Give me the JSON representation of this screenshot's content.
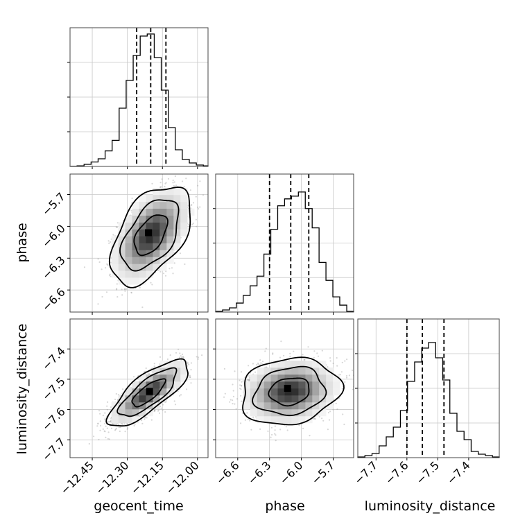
{
  "chart_data": {
    "type": "corner",
    "parameters": [
      "geocent_time",
      "phase",
      "luminosity_distance"
    ],
    "axis_labels": {
      "geocent_time": "geocent_time",
      "phase": "phase",
      "luminosity_distance": "luminosity_distance"
    },
    "ranges": {
      "geocent_time": [
        -12.545,
        -11.955
      ],
      "phase": [
        -6.808,
        -5.507
      ],
      "luminosity_distance": [
        -7.759,
        -7.301
      ]
    },
    "ticks": {
      "geocent_time": [
        -12.45,
        -12.3,
        -12.15,
        -12.0
      ],
      "phase": [
        -6.6,
        -6.3,
        -6.0,
        -5.7
      ],
      "luminosity_distance": [
        -7.7,
        -7.6,
        -7.5,
        -7.4
      ]
    },
    "tick_labels": {
      "geocent_time": [
        "−12.45",
        "−12.30",
        "−12.15",
        "−12.00"
      ],
      "phase": [
        "−6.6",
        "−6.3",
        "−6.0",
        "−5.7"
      ],
      "luminosity_distance": [
        "−7.7",
        "−7.6",
        "−7.5",
        "−7.4"
      ]
    },
    "quantiles": {
      "geocent_time": [
        -12.26,
        -12.2,
        -12.135
      ],
      "phase": [
        -6.3,
        -6.1,
        -5.93
      ],
      "luminosity_distance": [
        -7.6,
        -7.55,
        -7.48
      ]
    },
    "histograms": {
      "geocent_time": {
        "edges": [
          -12.545,
          -12.515,
          -12.485,
          -12.455,
          -12.425,
          -12.395,
          -12.365,
          -12.335,
          -12.305,
          -12.275,
          -12.245,
          -12.215,
          -12.185,
          -12.155,
          -12.125,
          -12.095,
          -12.065,
          -12.035,
          -12.005,
          -11.975,
          -11.955
        ],
        "counts": [
          0.1,
          0.4,
          1.5,
          3.2,
          5.5,
          11.2,
          18.8,
          42.0,
          62.0,
          80.0,
          94.0,
          95.5,
          78.5,
          55.0,
          28.0,
          12.0,
          5.0,
          2.5,
          1.0,
          0.4
        ],
        "ymax": 100
      },
      "phase": {
        "edges": [
          -6.808,
          -6.743,
          -6.678,
          -6.613,
          -6.548,
          -6.483,
          -6.418,
          -6.353,
          -6.288,
          -6.223,
          -6.158,
          -6.093,
          -6.028,
          -5.963,
          -5.898,
          -5.833,
          -5.768,
          -5.703,
          -5.638,
          -5.572,
          -5.507
        ],
        "counts": [
          0.5,
          1.5,
          3.0,
          6.5,
          12.0,
          19.0,
          26.0,
          42.0,
          60.0,
          77.0,
          82.0,
          84.0,
          87.0,
          75.0,
          61.0,
          36.0,
          23.0,
          11.0,
          5.0,
          0.5
        ],
        "ymax": 100
      },
      "luminosity_distance": {
        "edges": [
          -7.759,
          -7.736,
          -7.713,
          -7.69,
          -7.667,
          -7.644,
          -7.621,
          -7.598,
          -7.575,
          -7.552,
          -7.53,
          -7.507,
          -7.484,
          -7.461,
          -7.438,
          -7.415,
          -7.392,
          -7.369,
          -7.346,
          -7.323,
          -7.301
        ],
        "counts": [
          0.5,
          1.5,
          3.0,
          8.5,
          15.0,
          22.0,
          34.0,
          55.0,
          69.0,
          79.0,
          83.0,
          72.0,
          56.0,
          32.0,
          19.0,
          13.0,
          4.5,
          2.5,
          1.5,
          0.5
        ],
        "ymax": 100
      }
    },
    "pairs": [
      {
        "x": "geocent_time",
        "y": "phase",
        "center": [
          -12.2,
          -6.08
        ],
        "sigma": [
          0.07,
          0.19
        ],
        "rho": 0.5,
        "peak": [
          -12.21,
          -6.06
        ],
        "n_samples": 2400
      },
      {
        "x": "geocent_time",
        "y": "luminosity_distance",
        "center": [
          -12.21,
          -7.545
        ],
        "sigma": [
          0.07,
          0.045
        ],
        "rho": 0.78,
        "peak": [
          -12.205,
          -7.54
        ],
        "n_samples": 2400
      },
      {
        "x": "phase",
        "y": "luminosity_distance",
        "center": [
          -6.11,
          -7.54
        ],
        "sigma": [
          0.19,
          0.045
        ],
        "rho": 0.15,
        "peak": [
          -6.13,
          -7.53
        ],
        "n_samples": 2400
      }
    ],
    "grid": true,
    "quantile_line_style": "dashed"
  }
}
